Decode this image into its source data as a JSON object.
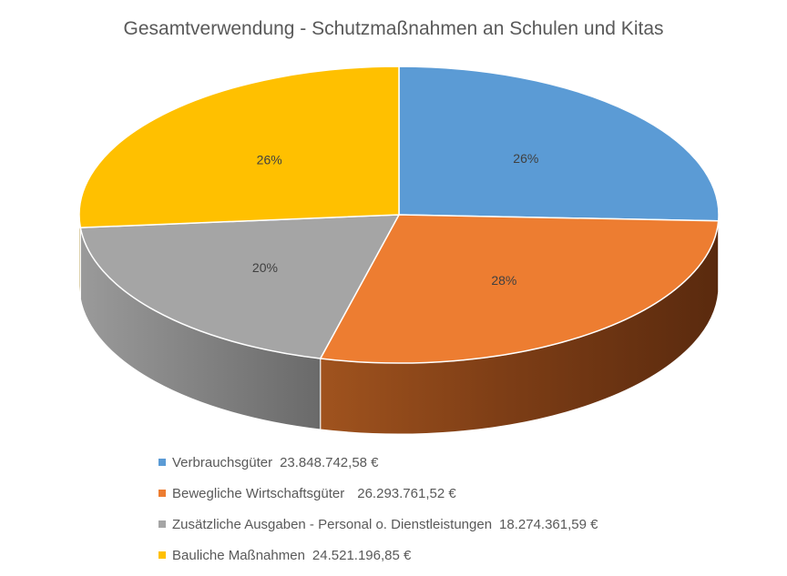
{
  "chart_data": {
    "type": "pie",
    "title": "Gesamtverwendung - Schutzmaßnahmen an Schulen und Kitas",
    "legend_position": "bottom",
    "slices": [
      {
        "label": "Verbrauchsgüter",
        "value_text": "23.848.742,58 €",
        "value": 23848742.58,
        "percent_label": "26%",
        "color": "#5B9BD5",
        "side_color": "#2E5C8A"
      },
      {
        "label": "Bewegliche Wirtschaftsgüter",
        "value_text": "26.293.761,52 €",
        "value": 26293761.52,
        "percent_label": "28%",
        "color": "#ED7D31",
        "side_color": "#7A3A12"
      },
      {
        "label": "Zusätzliche Ausgaben - Personal o. Dienstleistungen",
        "value_text": "18.274.361,59 €",
        "value": 18274361.59,
        "percent_label": "20%",
        "color": "#A5A5A5",
        "side_color": "#6E6E6E"
      },
      {
        "label": "Bauliche Maßnahmen",
        "value_text": "24.521.196,85 €",
        "value": 24521196.85,
        "percent_label": "26%",
        "color": "#FFC000",
        "side_color": "#9C7500"
      }
    ]
  }
}
